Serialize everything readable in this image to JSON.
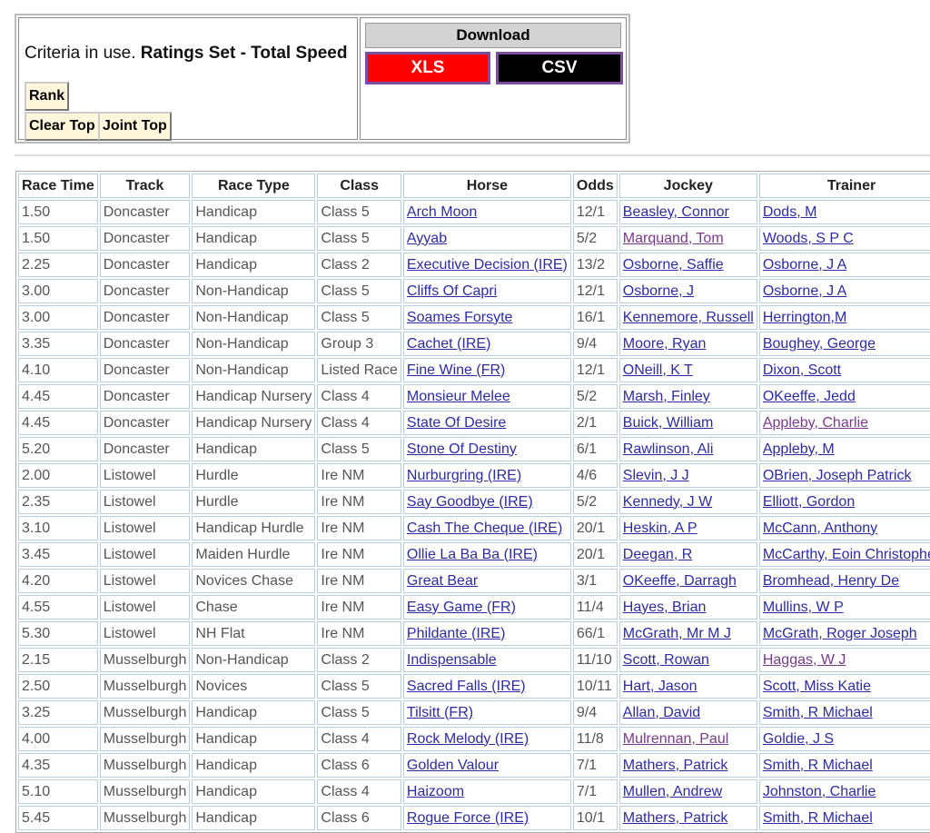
{
  "criteria": {
    "prefix": "Criteria in use.",
    "value": "Ratings Set - Total Speed"
  },
  "buttons": {
    "rank": "Rank",
    "clear_top": "Clear Top",
    "joint_top": "Joint Top"
  },
  "download": {
    "title": "Download",
    "xls": "XLS",
    "csv": "CSV",
    "xls_color": "#ff0000",
    "csv_color": "#000000"
  },
  "table": {
    "headers": [
      "Race Time",
      "Track",
      "Race Type",
      "Class",
      "Horse",
      "Odds",
      "Jockey",
      "Trainer"
    ],
    "rows": [
      [
        "1.50",
        "Doncaster",
        "Handicap",
        "Class 5",
        "Arch Moon",
        "12/1",
        "Beasley, Connor",
        "Dods, M"
      ],
      [
        "1.50",
        "Doncaster",
        "Handicap",
        "Class 5",
        "Ayyab",
        "5/2",
        "Marquand, Tom",
        "Woods, S P C"
      ],
      [
        "2.25",
        "Doncaster",
        "Handicap",
        "Class 2",
        "Executive Decision (IRE)",
        "13/2",
        "Osborne, Saffie",
        "Osborne, J A"
      ],
      [
        "3.00",
        "Doncaster",
        "Non-Handicap",
        "Class 5",
        "Cliffs Of Capri",
        "12/1",
        "Osborne, J",
        "Osborne, J A"
      ],
      [
        "3.00",
        "Doncaster",
        "Non-Handicap",
        "Class 5",
        "Soames Forsyte",
        "16/1",
        "Kennemore, Russell",
        "Herrington,M"
      ],
      [
        "3.35",
        "Doncaster",
        "Non-Handicap",
        "Group 3",
        "Cachet (IRE)",
        "9/4",
        "Moore, Ryan",
        "Boughey, George"
      ],
      [
        "4.10",
        "Doncaster",
        "Non-Handicap",
        "Listed Race",
        "Fine Wine (FR)",
        "12/1",
        "ONeill, K T",
        "Dixon, Scott"
      ],
      [
        "4.45",
        "Doncaster",
        "Handicap Nursery",
        "Class 4",
        "Monsieur Melee",
        "5/2",
        "Marsh, Finley",
        "OKeeffe, Jedd"
      ],
      [
        "4.45",
        "Doncaster",
        "Handicap Nursery",
        "Class 4",
        "State Of Desire",
        "2/1",
        "Buick, William",
        "Appleby, Charlie"
      ],
      [
        "5.20",
        "Doncaster",
        "Handicap",
        "Class 5",
        "Stone Of Destiny",
        "6/1",
        "Rawlinson, Ali",
        "Appleby, M"
      ],
      [
        "2.00",
        "Listowel",
        "Hurdle",
        "Ire NM",
        "Nurburgring (IRE)",
        "4/6",
        "Slevin, J J",
        "OBrien, Joseph Patrick"
      ],
      [
        "2.35",
        "Listowel",
        "Hurdle",
        "Ire NM",
        "Say Goodbye (IRE)",
        "5/2",
        "Kennedy, J W",
        "Elliott, Gordon"
      ],
      [
        "3.10",
        "Listowel",
        "Handicap Hurdle",
        "Ire NM",
        "Cash The Cheque (IRE)",
        "20/1",
        "Heskin, A P",
        "McCann, Anthony"
      ],
      [
        "3.45",
        "Listowel",
        "Maiden Hurdle",
        "Ire NM",
        "Ollie La Ba Ba (IRE)",
        "20/1",
        "Deegan, R",
        "McCarthy, Eoin Christopher"
      ],
      [
        "4.20",
        "Listowel",
        "Novices Chase",
        "Ire NM",
        "Great Bear",
        "3/1",
        "OKeeffe, Darragh",
        "Bromhead, Henry De"
      ],
      [
        "4.55",
        "Listowel",
        "Chase",
        "Ire NM",
        "Easy Game (FR)",
        "11/4",
        "Hayes, Brian",
        "Mullins, W P"
      ],
      [
        "5.30",
        "Listowel",
        "NH Flat",
        "Ire NM",
        "Phildante (IRE)",
        "66/1",
        "McGrath, Mr M J",
        "McGrath, Roger Joseph"
      ],
      [
        "2.15",
        "Musselburgh",
        "Non-Handicap",
        "Class 2",
        "Indispensable",
        "11/10",
        "Scott, Rowan",
        "Haggas, W J"
      ],
      [
        "2.50",
        "Musselburgh",
        "Novices",
        "Class 5",
        "Sacred Falls (IRE)",
        "10/11",
        "Hart, Jason",
        "Scott, Miss Katie"
      ],
      [
        "3.25",
        "Musselburgh",
        "Handicap",
        "Class 5",
        "Tilsitt (FR)",
        "9/4",
        "Allan, David",
        "Smith, R Michael"
      ],
      [
        "4.00",
        "Musselburgh",
        "Handicap",
        "Class 4",
        "Rock Melody (IRE)",
        "11/8",
        "Mulrennan, Paul",
        "Goldie, J S"
      ],
      [
        "4.35",
        "Musselburgh",
        "Handicap",
        "Class 6",
        "Golden Valour",
        "7/1",
        "Mathers, Patrick",
        "Smith, R Michael"
      ],
      [
        "5.10",
        "Musselburgh",
        "Handicap",
        "Class 4",
        "Haizoom",
        "7/1",
        "Mullen, Andrew",
        "Johnston, Charlie"
      ],
      [
        "5.45",
        "Musselburgh",
        "Handicap",
        "Class 6",
        "Rogue Force (IRE)",
        "10/1",
        "Mathers, Patrick",
        "Smith, R Michael"
      ]
    ],
    "visited_links": [
      "Marquand, Tom",
      "Appleby, Charlie",
      "Haggas, W J",
      "Mulrennan, Paul"
    ]
  }
}
